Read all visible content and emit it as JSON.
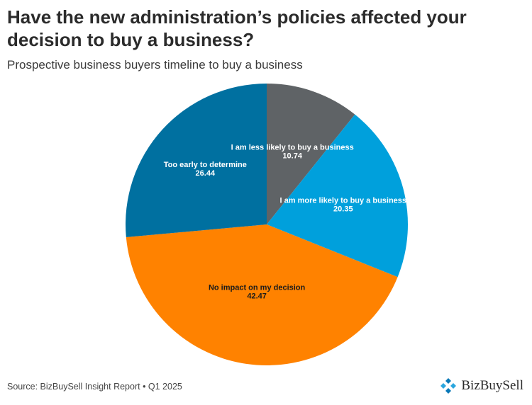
{
  "title": "Have the new administration’s policies affected your decision to buy a business?",
  "subtitle": "Prospective business buyers timeline to buy a business",
  "source": "Source: BizBuySell Insight Report • Q1 2025",
  "brand": {
    "name": "BizBuySell",
    "logo_icon": "bizbuysell-logo-icon"
  },
  "chart_data": {
    "type": "pie",
    "categories": [
      "I am less likely to buy a business",
      "I am more likely to buy a business",
      "No impact on my decision",
      "Too early to determine"
    ],
    "values": [
      10.74,
      20.35,
      42.47,
      26.44
    ],
    "colors": [
      "#5f6366",
      "#00a0dc",
      "#ff8200",
      "#0070a0"
    ],
    "label_colors": [
      "#ffffff",
      "#ffffff",
      "#1a1a1a",
      "#ffffff"
    ],
    "value_labels": [
      "10.74",
      "20.35",
      "42.47",
      "26.44"
    ],
    "start": "12 o'clock",
    "direction": "clockwise"
  }
}
